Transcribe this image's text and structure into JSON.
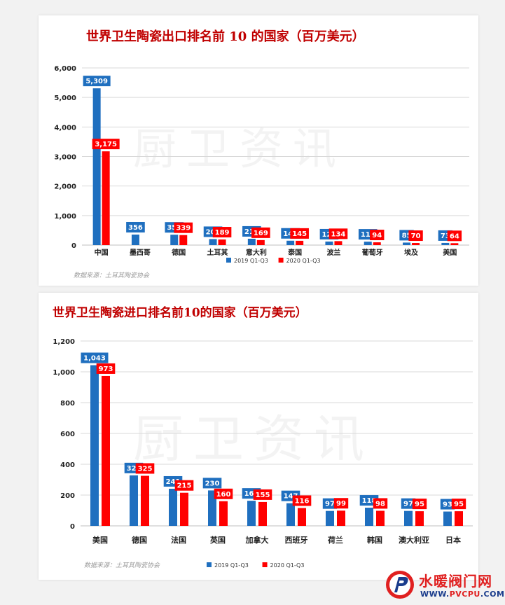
{
  "site": {
    "name": "水暖阀门网",
    "url_prefix": "WWW.",
    "url_brand": "PVCPU",
    "url_suffix": ".COM"
  },
  "watermark": "厨卫资讯",
  "colors": {
    "series_2019": "#1f6fbf",
    "series_2020": "#ff0000",
    "title": "#c00000"
  },
  "chart_data": [
    {
      "type": "bar",
      "title": "世界卫生陶瓷出口排名前 10 的国家（百万美元）",
      "categories": [
        "中国",
        "墨西哥",
        "德国",
        "土耳其",
        "意大利",
        "泰国",
        "波兰",
        "葡萄牙",
        "埃及",
        "美国"
      ],
      "series": [
        {
          "name": "2019 Q1-Q3",
          "values": [
            5309,
            356,
            351,
            203,
            215,
            148,
            120,
            116,
            85,
            73
          ]
        },
        {
          "name": "2020 Q1-Q3",
          "values": [
            3175,
            null,
            339,
            189,
            169,
            145,
            134,
            94,
            70,
            64
          ]
        }
      ],
      "ylim": [
        0,
        6000
      ],
      "yticks": [
        0,
        1000,
        2000,
        3000,
        4000,
        5000,
        6000
      ],
      "ytick_labels": [
        "0",
        "1,000",
        "2,000",
        "3,000",
        "4,000",
        "5,000",
        "6,000"
      ],
      "grid": true,
      "legend_position": "bottom",
      "source": "数据来源：土耳其陶瓷协会"
    },
    {
      "type": "bar",
      "title": "世界卫生陶瓷进口排名前10的国家（百万美元）",
      "categories": [
        "美国",
        "德国",
        "法国",
        "英国",
        "加拿大",
        "西班牙",
        "荷兰",
        "韩国",
        "澳大利亚",
        "日本"
      ],
      "series": [
        {
          "name": "2019  Q1-Q3",
          "values": [
            1043,
            328,
            241,
            230,
            163,
            147,
            97,
            118,
            97,
            93
          ]
        },
        {
          "name": "2020 Q1-Q3",
          "values": [
            973,
            325,
            215,
            160,
            155,
            116,
            99,
            98,
            95,
            95
          ]
        }
      ],
      "ylim": [
        0,
        1200
      ],
      "yticks": [
        0,
        200,
        400,
        600,
        800,
        1000,
        1200
      ],
      "ytick_labels": [
        "0",
        "200",
        "400",
        "600",
        "800",
        "1,000",
        "1,200"
      ],
      "grid": true,
      "legend_position": "bottom",
      "source": "数据来源：土耳其陶瓷协会"
    }
  ]
}
